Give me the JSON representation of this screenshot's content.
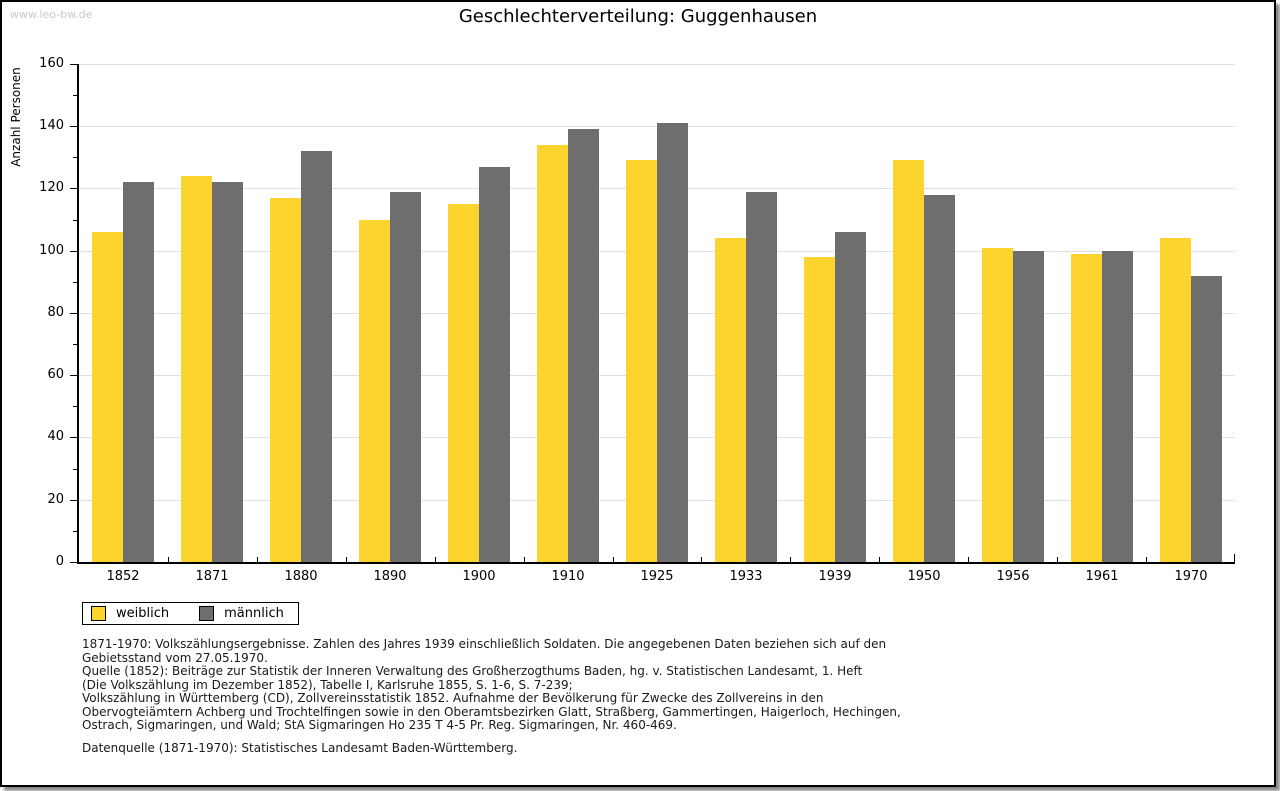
{
  "watermark": "www.leo-bw.de",
  "title": "Geschlechterverteilung: Guggenhausen",
  "chart_data": {
    "type": "bar",
    "title": "Geschlechterverteilung: Guggenhausen",
    "xlabel": "",
    "ylabel": "Anzahl Personen",
    "ylim": [
      0,
      160
    ],
    "ytick_step": 20,
    "minor_tick_step": 10,
    "grid": true,
    "legend_position": "bottom-left",
    "categories": [
      "1852",
      "1871",
      "1880",
      "1890",
      "1900",
      "1910",
      "1925",
      "1933",
      "1939",
      "1950",
      "1956",
      "1961",
      "1970"
    ],
    "series": [
      {
        "name": "weiblich",
        "color": "#fcd42d",
        "values": [
          106,
          124,
          117,
          110,
          115,
          134,
          129,
          104,
          98,
          129,
          101,
          99,
          104
        ]
      },
      {
        "name": "männlich",
        "color": "#6e6e6e",
        "values": [
          122,
          122,
          132,
          119,
          127,
          139,
          141,
          119,
          106,
          118,
          100,
          100,
          92
        ]
      }
    ]
  },
  "footnotes": [
    "1871-1970: Volkszählungsergebnisse. Zahlen des Jahres 1939 einschließlich Soldaten. Die angegebenen Daten beziehen sich auf den",
    "Gebietsstand vom 27.05.1970.",
    "Quelle (1852): Beiträge zur Statistik der Inneren Verwaltung des Großherzogthums Baden, hg. v. Statistischen Landesamt, 1. Heft",
    "(Die Volkszählung im Dezember 1852), Tabelle I, Karlsruhe 1855, S. 1-6, S. 7-239;",
    "Volkszählung in Württemberg (CD), Zollvereinsstatistik 1852. Aufnahme der Bevölkerung für Zwecke des Zollvereins in den",
    "Obervogteiämtern Achberg und Trochtelfingen sowie in den Oberamtsbezirken Glatt, Straßberg, Gammertingen, Haigerloch, Hechingen,",
    "Ostrach, Sigmaringen, und Wald; StA Sigmaringen Ho 235 T 4-5 Pr. Reg. Sigmaringen, Nr. 460-469."
  ],
  "datasource": "Datenquelle (1871-1970): Statistisches Landesamt Baden-Württemberg."
}
